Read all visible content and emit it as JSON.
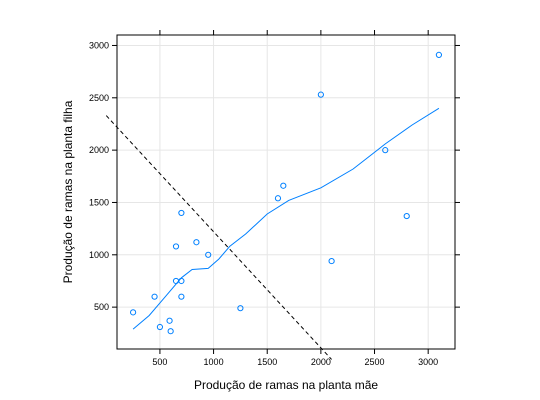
{
  "chart_data": {
    "type": "scatter",
    "xlabel": "Produção de ramas na planta mãe",
    "ylabel": "Produção de ramas na planta filha",
    "xlim": [
      100,
      3250
    ],
    "ylim": [
      100,
      3100
    ],
    "xticks": [
      500,
      1000,
      1500,
      2000,
      2500,
      3000
    ],
    "yticks": [
      500,
      1000,
      1500,
      2000,
      2500,
      3000
    ],
    "grid": true,
    "point_color": "#0080ff",
    "smooth_color": "#0080ff",
    "reference_line_color": "#000000",
    "points": [
      {
        "x": 250,
        "y": 450
      },
      {
        "x": 450,
        "y": 600
      },
      {
        "x": 500,
        "y": 310
      },
      {
        "x": 590,
        "y": 370
      },
      {
        "x": 600,
        "y": 270
      },
      {
        "x": 650,
        "y": 1080
      },
      {
        "x": 650,
        "y": 750
      },
      {
        "x": 700,
        "y": 750
      },
      {
        "x": 700,
        "y": 600
      },
      {
        "x": 700,
        "y": 1400
      },
      {
        "x": 840,
        "y": 1120
      },
      {
        "x": 950,
        "y": 1000
      },
      {
        "x": 1250,
        "y": 490
      },
      {
        "x": 1600,
        "y": 1540
      },
      {
        "x": 1650,
        "y": 1660
      },
      {
        "x": 2000,
        "y": 2530
      },
      {
        "x": 2100,
        "y": 940
      },
      {
        "x": 2600,
        "y": 2000
      },
      {
        "x": 2800,
        "y": 1370
      },
      {
        "x": 3100,
        "y": 2910
      }
    ],
    "smooth_line": [
      {
        "x": 250,
        "y": 290
      },
      {
        "x": 400,
        "y": 420
      },
      {
        "x": 550,
        "y": 600
      },
      {
        "x": 700,
        "y": 780
      },
      {
        "x": 800,
        "y": 860
      },
      {
        "x": 950,
        "y": 870
      },
      {
        "x": 1050,
        "y": 960
      },
      {
        "x": 1150,
        "y": 1080
      },
      {
        "x": 1300,
        "y": 1200
      },
      {
        "x": 1500,
        "y": 1390
      },
      {
        "x": 1700,
        "y": 1520
      },
      {
        "x": 2000,
        "y": 1640
      },
      {
        "x": 2300,
        "y": 1820
      },
      {
        "x": 2600,
        "y": 2060
      },
      {
        "x": 2850,
        "y": 2240
      },
      {
        "x": 3100,
        "y": 2400
      }
    ],
    "reference_line": {
      "x1": 0,
      "y1": 2330,
      "x2": 2100,
      "y2": 0
    }
  }
}
